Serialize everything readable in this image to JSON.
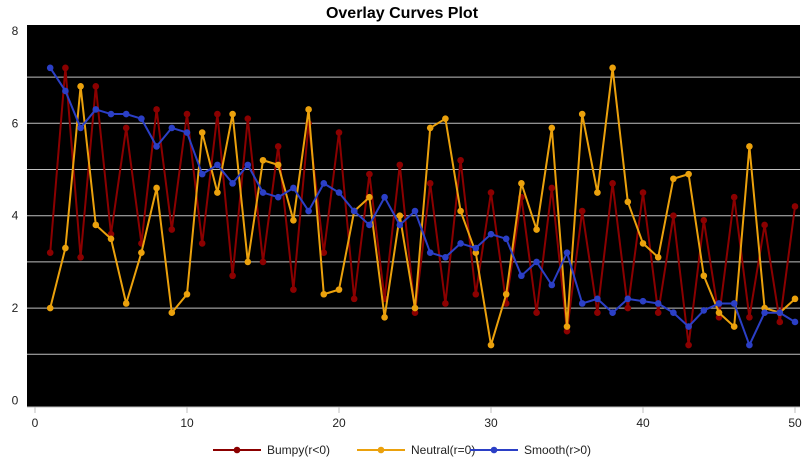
{
  "chart_data": {
    "type": "line",
    "title": "Overlay Curves Plot",
    "xlabel": "",
    "ylabel": "",
    "xlim": [
      0,
      50
    ],
    "ylim": [
      0,
      8
    ],
    "x_ticks": [
      0,
      10,
      20,
      30,
      40,
      50
    ],
    "y_ticks": [
      0,
      2,
      4,
      6,
      8
    ],
    "grid": true,
    "legend_position": "bottom-center",
    "x": [
      1,
      2,
      3,
      4,
      5,
      6,
      7,
      8,
      9,
      10,
      11,
      12,
      13,
      14,
      15,
      16,
      17,
      18,
      19,
      20,
      21,
      22,
      23,
      24,
      25,
      26,
      27,
      28,
      29,
      30,
      31,
      32,
      33,
      34,
      35,
      36,
      37,
      38,
      39,
      40,
      41,
      42,
      43,
      44,
      45,
      46,
      47,
      48,
      49,
      50
    ],
    "series": [
      {
        "name": "Bumpy(r<0)",
        "color": "#8b0000",
        "values": [
          3.2,
          7.2,
          3.1,
          6.8,
          3.6,
          5.9,
          3.4,
          6.3,
          3.7,
          6.2,
          3.4,
          6.2,
          2.7,
          6.1,
          3.0,
          5.5,
          2.4,
          6.0,
          3.2,
          5.8,
          2.2,
          4.9,
          2.2,
          5.1,
          1.9,
          4.7,
          2.1,
          5.2,
          2.3,
          4.5,
          2.1,
          4.4,
          1.9,
          4.6,
          1.5,
          4.1,
          1.9,
          4.7,
          2.0,
          4.5,
          1.9,
          4.0,
          1.2,
          3.9,
          1.8,
          4.4,
          1.8,
          3.8,
          1.7,
          4.2
        ]
      },
      {
        "name": "Neutral(r=0)",
        "color": "#eba10c",
        "values": [
          2.0,
          3.3,
          6.8,
          3.8,
          3.5,
          2.1,
          3.2,
          4.6,
          1.9,
          2.3,
          5.8,
          4.5,
          6.2,
          3.0,
          5.2,
          5.1,
          3.9,
          6.3,
          2.3,
          2.4,
          4.1,
          4.4,
          1.8,
          4.0,
          2.0,
          5.9,
          6.1,
          4.1,
          3.2,
          1.2,
          2.3,
          4.7,
          3.7,
          5.9,
          1.6,
          6.2,
          4.5,
          7.2,
          4.3,
          3.4,
          3.1,
          4.8,
          4.9,
          2.7,
          1.9,
          1.6,
          5.5,
          2.0,
          1.9,
          2.2
        ]
      },
      {
        "name": "Smooth(r>0)",
        "color": "#2b3fc6",
        "values": [
          7.2,
          6.7,
          5.9,
          6.3,
          6.2,
          6.2,
          6.1,
          5.5,
          5.9,
          5.8,
          4.9,
          5.1,
          4.7,
          5.1,
          4.5,
          4.4,
          4.6,
          4.1,
          4.7,
          4.5,
          4.1,
          3.8,
          4.4,
          3.8,
          4.1,
          3.2,
          3.1,
          3.4,
          3.3,
          3.6,
          3.5,
          2.7,
          3.0,
          2.5,
          3.2,
          2.1,
          2.2,
          1.9,
          2.2,
          2.15,
          2.1,
          1.9,
          1.6,
          1.95,
          2.1,
          2.1,
          1.2,
          1.9,
          1.9,
          1.7
        ]
      }
    ]
  }
}
